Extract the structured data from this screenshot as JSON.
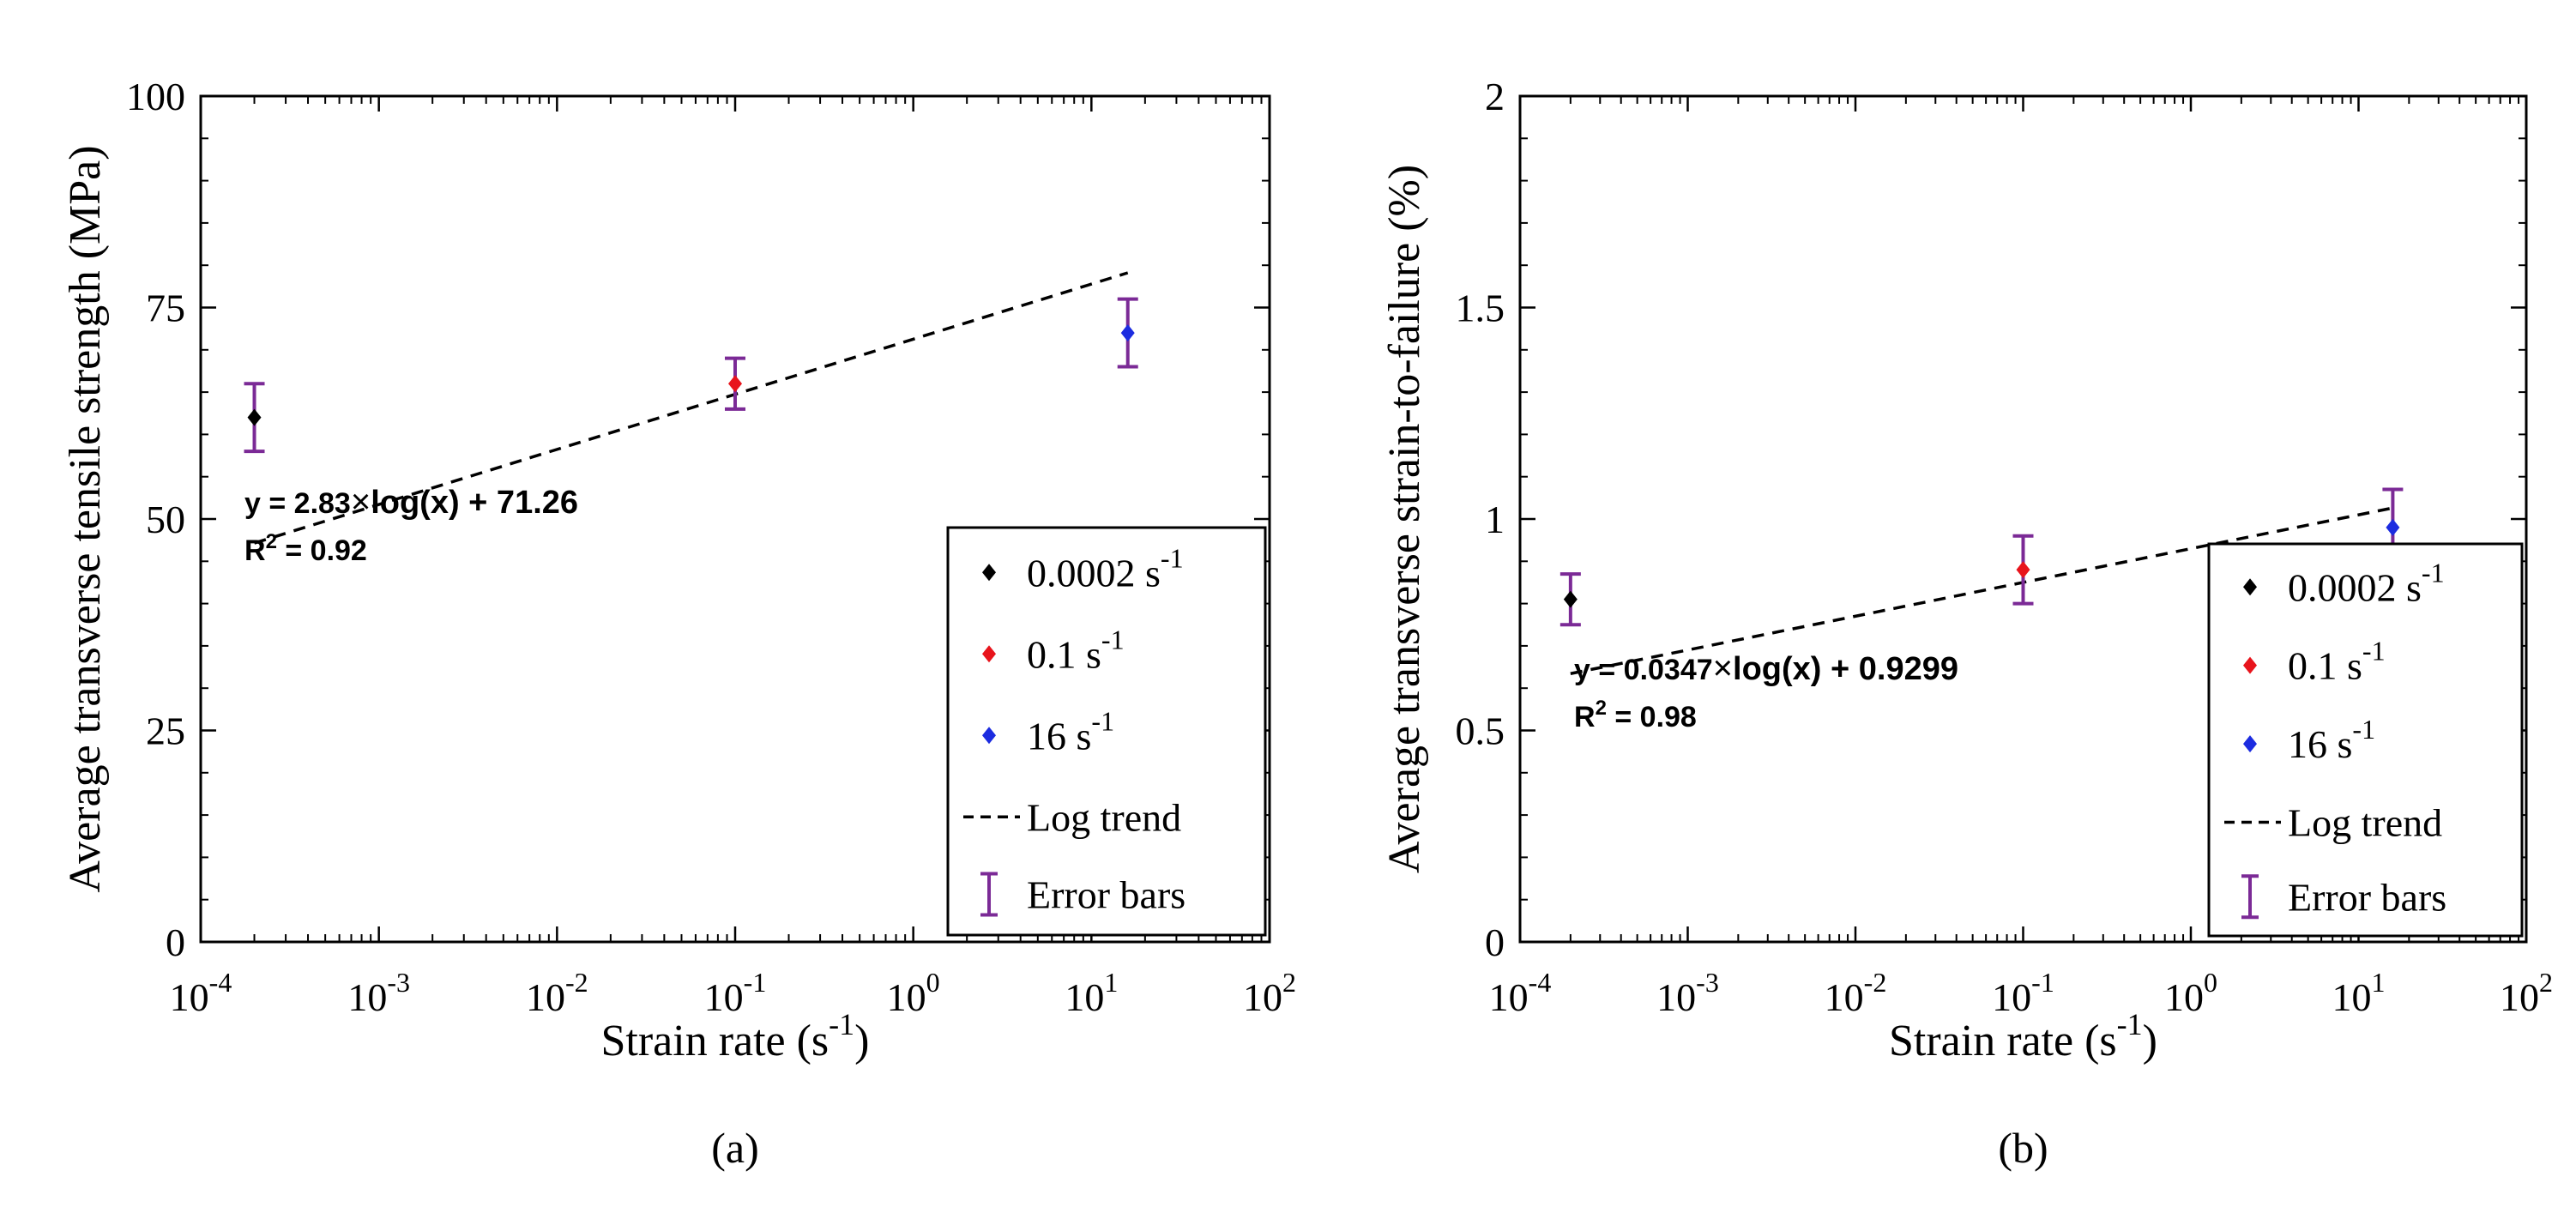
{
  "chart_data": [
    {
      "type": "scatter",
      "panel_label": "(a)",
      "xlabel": "Strain rate (s",
      "xlabel_sup": "-1",
      "xlabel_tail": ")",
      "ylabel": "Average transverse tensile strength (MPa)",
      "xscale": "log",
      "xlim": [
        0.0001,
        100
      ],
      "ylim": [
        0,
        100
      ],
      "x_ticks": [
        {
          "base": "10",
          "exp": "-4"
        },
        {
          "base": "10",
          "exp": "-3"
        },
        {
          "base": "10",
          "exp": "-2"
        },
        {
          "base": "10",
          "exp": "-1"
        },
        {
          "base": "10",
          "exp": "0"
        },
        {
          "base": "10",
          "exp": "1"
        },
        {
          "base": "10",
          "exp": "2"
        }
      ],
      "y_ticks": [
        "0",
        "25",
        "50",
        "75",
        "100"
      ],
      "series": [
        {
          "name": "0.0002 s",
          "sup": "-1",
          "color": "#000000",
          "x": 0.0002,
          "y": 62,
          "err": 4
        },
        {
          "name": "0.1 s",
          "sup": "-1",
          "color": "#e8141c",
          "x": 0.1,
          "y": 66,
          "err": 3
        },
        {
          "name": "16 s",
          "sup": "-1",
          "color": "#1c2ce0",
          "x": 16,
          "y": 72,
          "err": 4
        }
      ],
      "trend": {
        "name": "Log trend",
        "a": 2.83,
        "b": 71.26,
        "x_from": 0.0002,
        "x_to": 16
      },
      "error_label": "Error bars",
      "error_color": "#7b2a96",
      "equation": {
        "prefix": "y = 2.83",
        "times": "×",
        "suffix": "log(x) + 71.26",
        "r2_prefix": "R",
        "r2_sup": "2",
        "r2_value": " = 0.92"
      },
      "legend_position": "bottom-right"
    },
    {
      "type": "scatter",
      "panel_label": "(b)",
      "xlabel": "Strain rate (s",
      "xlabel_sup": "-1",
      "xlabel_tail": ")",
      "ylabel": "Average transverse strain-to-failure (%)",
      "xscale": "log",
      "xlim": [
        0.0001,
        100
      ],
      "ylim": [
        0,
        2
      ],
      "x_ticks": [
        {
          "base": "10",
          "exp": "-4"
        },
        {
          "base": "10",
          "exp": "-3"
        },
        {
          "base": "10",
          "exp": "-2"
        },
        {
          "base": "10",
          "exp": "-1"
        },
        {
          "base": "10",
          "exp": "0"
        },
        {
          "base": "10",
          "exp": "1"
        },
        {
          "base": "10",
          "exp": "2"
        }
      ],
      "y_ticks": [
        "0",
        "0.5",
        "1",
        "1.5",
        "2"
      ],
      "series": [
        {
          "name": "0.0002 s",
          "sup": "-1",
          "color": "#000000",
          "x": 0.0002,
          "y": 0.81,
          "err": 0.06
        },
        {
          "name": "0.1 s",
          "sup": "-1",
          "color": "#e8141c",
          "x": 0.1,
          "y": 0.88,
          "err": 0.08
        },
        {
          "name": "16 s",
          "sup": "-1",
          "color": "#1c2ce0",
          "x": 16,
          "y": 0.98,
          "err": 0.09
        }
      ],
      "trend": {
        "name": "Log trend",
        "a": 0.0347,
        "b": 0.9299,
        "x_from": 0.0002,
        "x_to": 16
      },
      "error_label": "Error bars",
      "error_color": "#7b2a96",
      "equation": {
        "prefix": "y = 0.0347",
        "times": "×",
        "suffix": "log(x) + 0.9299",
        "r2_prefix": "R",
        "r2_sup": "2",
        "r2_value": " = 0.98"
      },
      "legend_position": "bottom-right"
    }
  ]
}
